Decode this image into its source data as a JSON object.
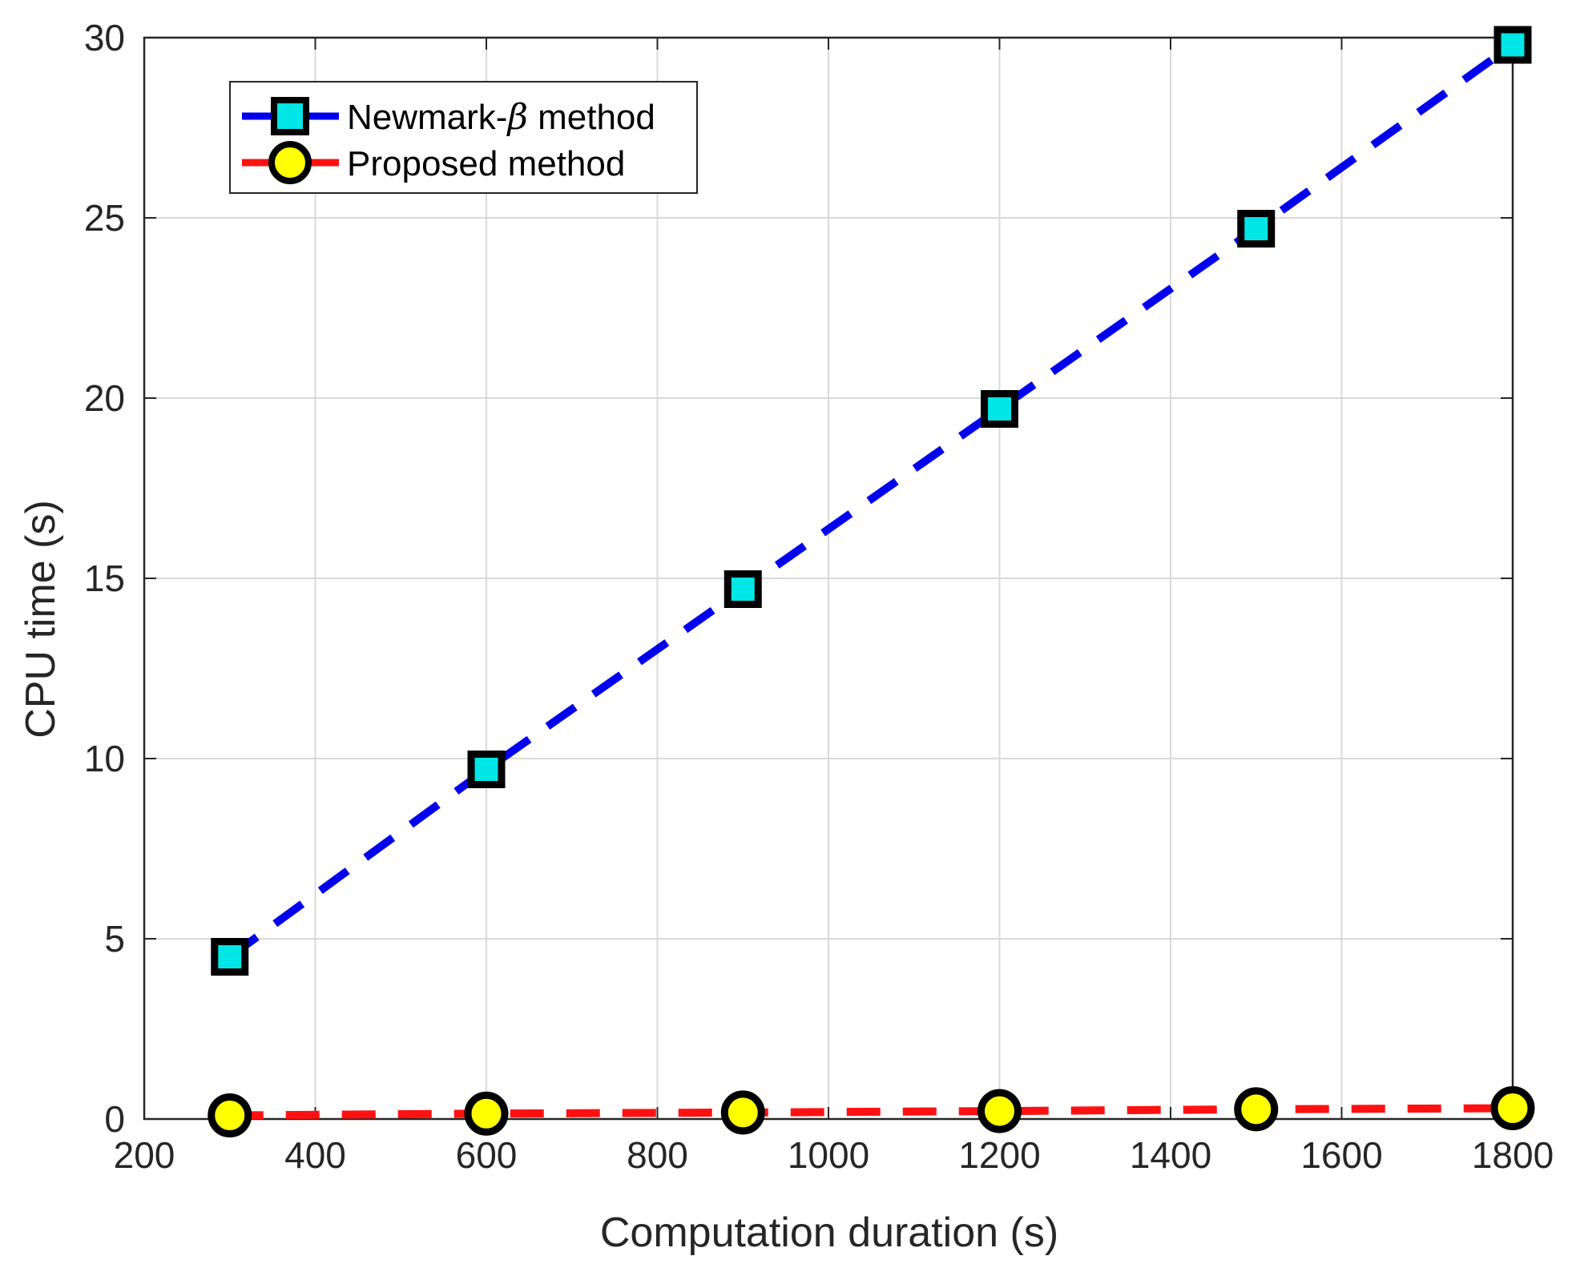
{
  "chart_data": {
    "type": "line",
    "title": "",
    "xlabel": "Computation duration (s)",
    "ylabel": "CPU time (s)",
    "xlim": [
      200,
      1800
    ],
    "ylim": [
      0,
      30
    ],
    "xticks": [
      200,
      400,
      600,
      800,
      1000,
      1200,
      1400,
      1600,
      1800
    ],
    "yticks": [
      0,
      5,
      10,
      15,
      20,
      25,
      30
    ],
    "grid": true,
    "legend_position": "top-left",
    "x": [
      300,
      600,
      900,
      1200,
      1500,
      1800
    ],
    "series": [
      {
        "name": "Newmark-β method",
        "name_prefix": "Newmark-",
        "name_symbol": "β",
        "name_suffix": " method",
        "values": [
          4.5,
          9.7,
          14.7,
          19.7,
          24.7,
          29.8
        ],
        "line_color": "#0000ee",
        "marker": "square",
        "marker_fill": "#00e5e5"
      },
      {
        "name": "Proposed method",
        "values": [
          0.1,
          0.15,
          0.18,
          0.22,
          0.27,
          0.3
        ],
        "line_color": "#ff1111",
        "marker": "circle",
        "marker_fill": "#ffff00"
      }
    ]
  }
}
